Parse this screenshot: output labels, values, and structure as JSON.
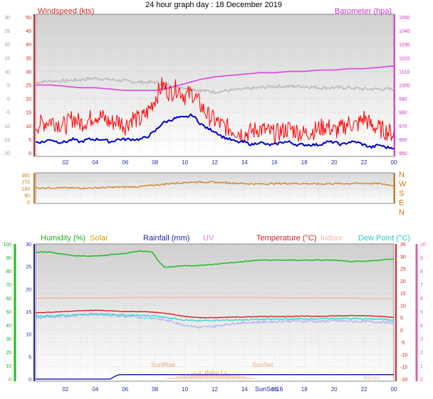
{
  "page_title": "24 hour graph day : 18 December 2019",
  "colors": {
    "wind": "#ff0000",
    "gust_avg": "#0000cc",
    "baro": "#e040e0",
    "temp_out": "#c0c0c0",
    "wind_dir": "#d07818",
    "humidity": "#22bb22",
    "solar": "#c8a800",
    "rainfall": "#2222aa",
    "uv": "#e080e0",
    "temperature": "#cc2222",
    "indoor": "#f0b8a8",
    "dewpoint": "#30d8d8",
    "feels": "#b0b0f0",
    "sun": "#f0b890"
  },
  "chart_data": [
    {
      "type": "line",
      "name": "wind-baro-panel",
      "left_axis_label": "Windspeed (kts)",
      "right_axis_label": "Barometer (hpa)",
      "left_ticks_wind": [
        "50",
        "45",
        "40",
        "35",
        "30",
        "25",
        "20",
        "15",
        "10",
        "5",
        "0"
      ],
      "left_ticks_temp": [
        "30",
        "25",
        "20",
        "15",
        "10",
        "5",
        "0",
        "-5",
        "-10",
        "-15",
        "-20"
      ],
      "right_ticks": [
        "1050",
        "1040",
        "1030",
        "1020",
        "1010",
        "1000",
        "990",
        "980",
        "970",
        "960",
        "950"
      ],
      "x_ticks": [
        "02",
        "04",
        "06",
        "08",
        "10",
        "12",
        "14",
        "16",
        "18",
        "20",
        "22",
        "00"
      ],
      "wind_ylim": [
        0,
        50
      ],
      "baro_ylim": [
        950,
        1050
      ],
      "series": [
        {
          "key": "wind",
          "x": [
            0,
            0.5,
            1,
            1.5,
            2,
            2.5,
            3,
            3.5,
            4,
            4.5,
            5,
            5.5,
            6,
            6.5,
            7,
            7.5,
            8,
            8.5,
            9,
            9.5,
            10,
            10.5,
            11,
            11.5,
            12,
            12.5,
            13,
            13.5,
            14,
            14.5,
            15,
            15.5,
            16,
            16.5,
            17,
            17.5,
            18,
            18.5,
            19,
            19.5,
            20,
            20.5,
            21,
            21.5,
            22,
            22.5,
            23,
            23.5,
            24
          ],
          "y": [
            10,
            11,
            12,
            11,
            10,
            13,
            11,
            12,
            14,
            13,
            11,
            12,
            10,
            13,
            12,
            15,
            20,
            25,
            22,
            24,
            21,
            22,
            18,
            14,
            12,
            10,
            9,
            8,
            7,
            8,
            9,
            8,
            7,
            8,
            9,
            8,
            7,
            8,
            9,
            10,
            8,
            9,
            11,
            10,
            13,
            10,
            9,
            8,
            7
          ]
        },
        {
          "key": "gust_avg",
          "x": [
            0,
            0.5,
            1,
            1.5,
            2,
            2.5,
            3,
            3.5,
            4,
            4.5,
            5,
            5.5,
            6,
            6.5,
            7,
            7.5,
            8,
            8.5,
            9,
            9.5,
            10,
            10.5,
            11,
            11.5,
            12,
            12.5,
            13,
            13.5,
            14,
            14.5,
            15,
            15.5,
            16,
            16.5,
            17,
            17.5,
            18,
            18.5,
            19,
            19.5,
            20,
            20.5,
            21,
            21.5,
            22,
            22.5,
            23,
            23.5,
            24
          ],
          "y": [
            4,
            4,
            5,
            4,
            4,
            5,
            4,
            5,
            5,
            5,
            4,
            5,
            5,
            5,
            5,
            6,
            8,
            11,
            12,
            13,
            13,
            14,
            11,
            9,
            8,
            6,
            5,
            4,
            4,
            3,
            4,
            3,
            3,
            4,
            4,
            3,
            3,
            3,
            3,
            4,
            4,
            3,
            4,
            4,
            3,
            2,
            3,
            2,
            2
          ]
        },
        {
          "key": "baro",
          "x": [
            0,
            1,
            2,
            3,
            4,
            5,
            6,
            7,
            8,
            9,
            10,
            11,
            12,
            13,
            14,
            15,
            16,
            17,
            18,
            19,
            20,
            21,
            22,
            23,
            24
          ],
          "y": [
            1000,
            1000,
            999,
            998,
            998,
            997,
            996,
            996,
            996,
            998,
            1001,
            1004,
            1006,
            1007,
            1008,
            1009,
            1009,
            1010,
            1010,
            1011,
            1011,
            1012,
            1012,
            1013,
            1014
          ]
        },
        {
          "key": "temp_out",
          "x": [
            0,
            1,
            2,
            3,
            4,
            5,
            6,
            7,
            8,
            9,
            10,
            11,
            12,
            13,
            14,
            15,
            16,
            17,
            18,
            19,
            20,
            21,
            22,
            23,
            24
          ],
          "y": [
            6,
            6.5,
            6.5,
            7,
            7.5,
            7,
            6.5,
            6,
            6,
            5,
            4,
            3,
            2.5,
            3,
            3.5,
            4,
            4.5,
            4.5,
            4.5,
            4,
            4,
            4,
            3.5,
            3.5,
            3.5
          ]
        }
      ]
    },
    {
      "type": "line",
      "name": "wind-direction-panel",
      "left_ticks": [
        "360",
        "270",
        "180",
        "90",
        "0"
      ],
      "right_ticks": [
        "N",
        "W",
        "S",
        "E",
        "N"
      ],
      "ylim": [
        0,
        360
      ],
      "series": [
        {
          "key": "wind_dir",
          "x": [
            0,
            1,
            2,
            3,
            4,
            5,
            6,
            7,
            8,
            9,
            10,
            11,
            12,
            13,
            14,
            15,
            16,
            17,
            18,
            19,
            20,
            21,
            22,
            23,
            24
          ],
          "y": [
            185,
            190,
            188,
            185,
            188,
            195,
            200,
            205,
            225,
            245,
            260,
            268,
            262,
            255,
            245,
            240,
            245,
            248,
            245,
            240,
            245,
            245,
            248,
            245,
            220
          ]
        }
      ]
    },
    {
      "type": "line",
      "name": "humidity-temp-panel",
      "legend": [
        "Humidity (%)",
        "Solar",
        "Rainfall (mm)",
        "UV",
        "Temperature (°C)",
        "Indoor",
        "Dew Point (°C)"
      ],
      "humidity_ticks": [
        "100",
        "90",
        "80",
        "70",
        "60",
        "50",
        "40",
        "30",
        "20",
        "10",
        "0"
      ],
      "rain_ticks": [
        "30",
        "25",
        "20",
        "15",
        "10",
        "5",
        "0"
      ],
      "temp_ticks": [
        "35",
        "30",
        "25",
        "20",
        "15",
        "10",
        "5",
        "0",
        "-5",
        "-10",
        "-15",
        "-20"
      ],
      "uv_ticks": [
        "10",
        "9",
        "8",
        "7",
        "6",
        "5",
        "4",
        "3",
        "2",
        "1",
        "0"
      ],
      "x_ticks": [
        "02",
        "04",
        "06",
        "08",
        "10",
        "12",
        "14",
        "16",
        "18",
        "20",
        "22",
        "00"
      ],
      "annotations": [
        "SunRise",
        "SunSet",
        "SunSet16",
        "Moon"
      ],
      "temp_ylim": [
        -20,
        35
      ],
      "humidity_ylim": [
        0,
        100
      ],
      "series": [
        {
          "key": "humidity",
          "x": [
            0,
            1,
            2,
            3,
            4,
            5,
            6,
            7,
            7.8,
            8.2,
            8.6,
            9,
            10,
            11,
            12,
            13,
            14,
            15,
            16,
            17,
            18,
            19,
            20,
            21,
            22,
            23,
            24
          ],
          "y": [
            94,
            94,
            92,
            91,
            91,
            92,
            93,
            95,
            94,
            88,
            83,
            83,
            84,
            84,
            85,
            86,
            87,
            88,
            88,
            88,
            88,
            88,
            88,
            87,
            87,
            88,
            89
          ]
        },
        {
          "key": "temperature",
          "x": [
            0,
            1,
            2,
            3,
            4,
            5,
            6,
            7,
            8,
            9,
            10,
            11,
            12,
            13,
            14,
            15,
            16,
            17,
            18,
            19,
            20,
            21,
            22,
            23,
            24
          ],
          "y": [
            7,
            7.2,
            7.5,
            7.8,
            8,
            7.8,
            7.5,
            7.5,
            7.2,
            6.5,
            5.5,
            5,
            5,
            5.2,
            5.3,
            5.5,
            5.5,
            5.5,
            5.6,
            5.6,
            5.7,
            5.8,
            5.8,
            5.6,
            5.2
          ]
        },
        {
          "key": "dewpoint",
          "x": [
            0,
            1,
            2,
            3,
            4,
            5,
            6,
            7,
            8,
            9,
            10,
            11,
            12,
            13,
            14,
            15,
            16,
            17,
            18,
            19,
            20,
            21,
            22,
            23,
            24
          ],
          "y": [
            5.5,
            5.8,
            6,
            6.2,
            6.5,
            6.3,
            6,
            6,
            5.6,
            4.8,
            4,
            3.8,
            3.8,
            4,
            4.2,
            4.3,
            4.4,
            4.4,
            4.5,
            4.5,
            4.6,
            4.6,
            4.5,
            4.4,
            4.1
          ]
        },
        {
          "key": "feels",
          "x": [
            0,
            1,
            2,
            3,
            4,
            5,
            6,
            7,
            8,
            9,
            10,
            11,
            12,
            13,
            14,
            15,
            16,
            17,
            18,
            19,
            20,
            21,
            22,
            23,
            24
          ],
          "y": [
            5,
            5.2,
            5.6,
            6,
            6.4,
            6,
            5.5,
            5.2,
            4.8,
            3.6,
            2,
            1,
            1.5,
            2.5,
            3,
            3.2,
            3.4,
            3.6,
            3.6,
            3.5,
            3.6,
            3.6,
            3.4,
            3.2,
            3
          ]
        },
        {
          "key": "indoor",
          "x": [
            0,
            4,
            8,
            12,
            16,
            20,
            24
          ],
          "y": [
            13,
            13,
            13.2,
            13.3,
            13.1,
            13,
            12.8
          ]
        },
        {
          "key": "rainfall",
          "x": [
            0,
            5,
            5.3,
            5.6,
            24
          ],
          "y": [
            0,
            0,
            0.6,
            1,
            1
          ]
        },
        {
          "key": "solar",
          "x": [
            0,
            8.5,
            9,
            10,
            11,
            12,
            13,
            14,
            15,
            24
          ],
          "y": [
            0,
            0,
            1,
            3,
            5,
            6,
            4,
            2,
            0,
            0
          ]
        }
      ]
    }
  ]
}
